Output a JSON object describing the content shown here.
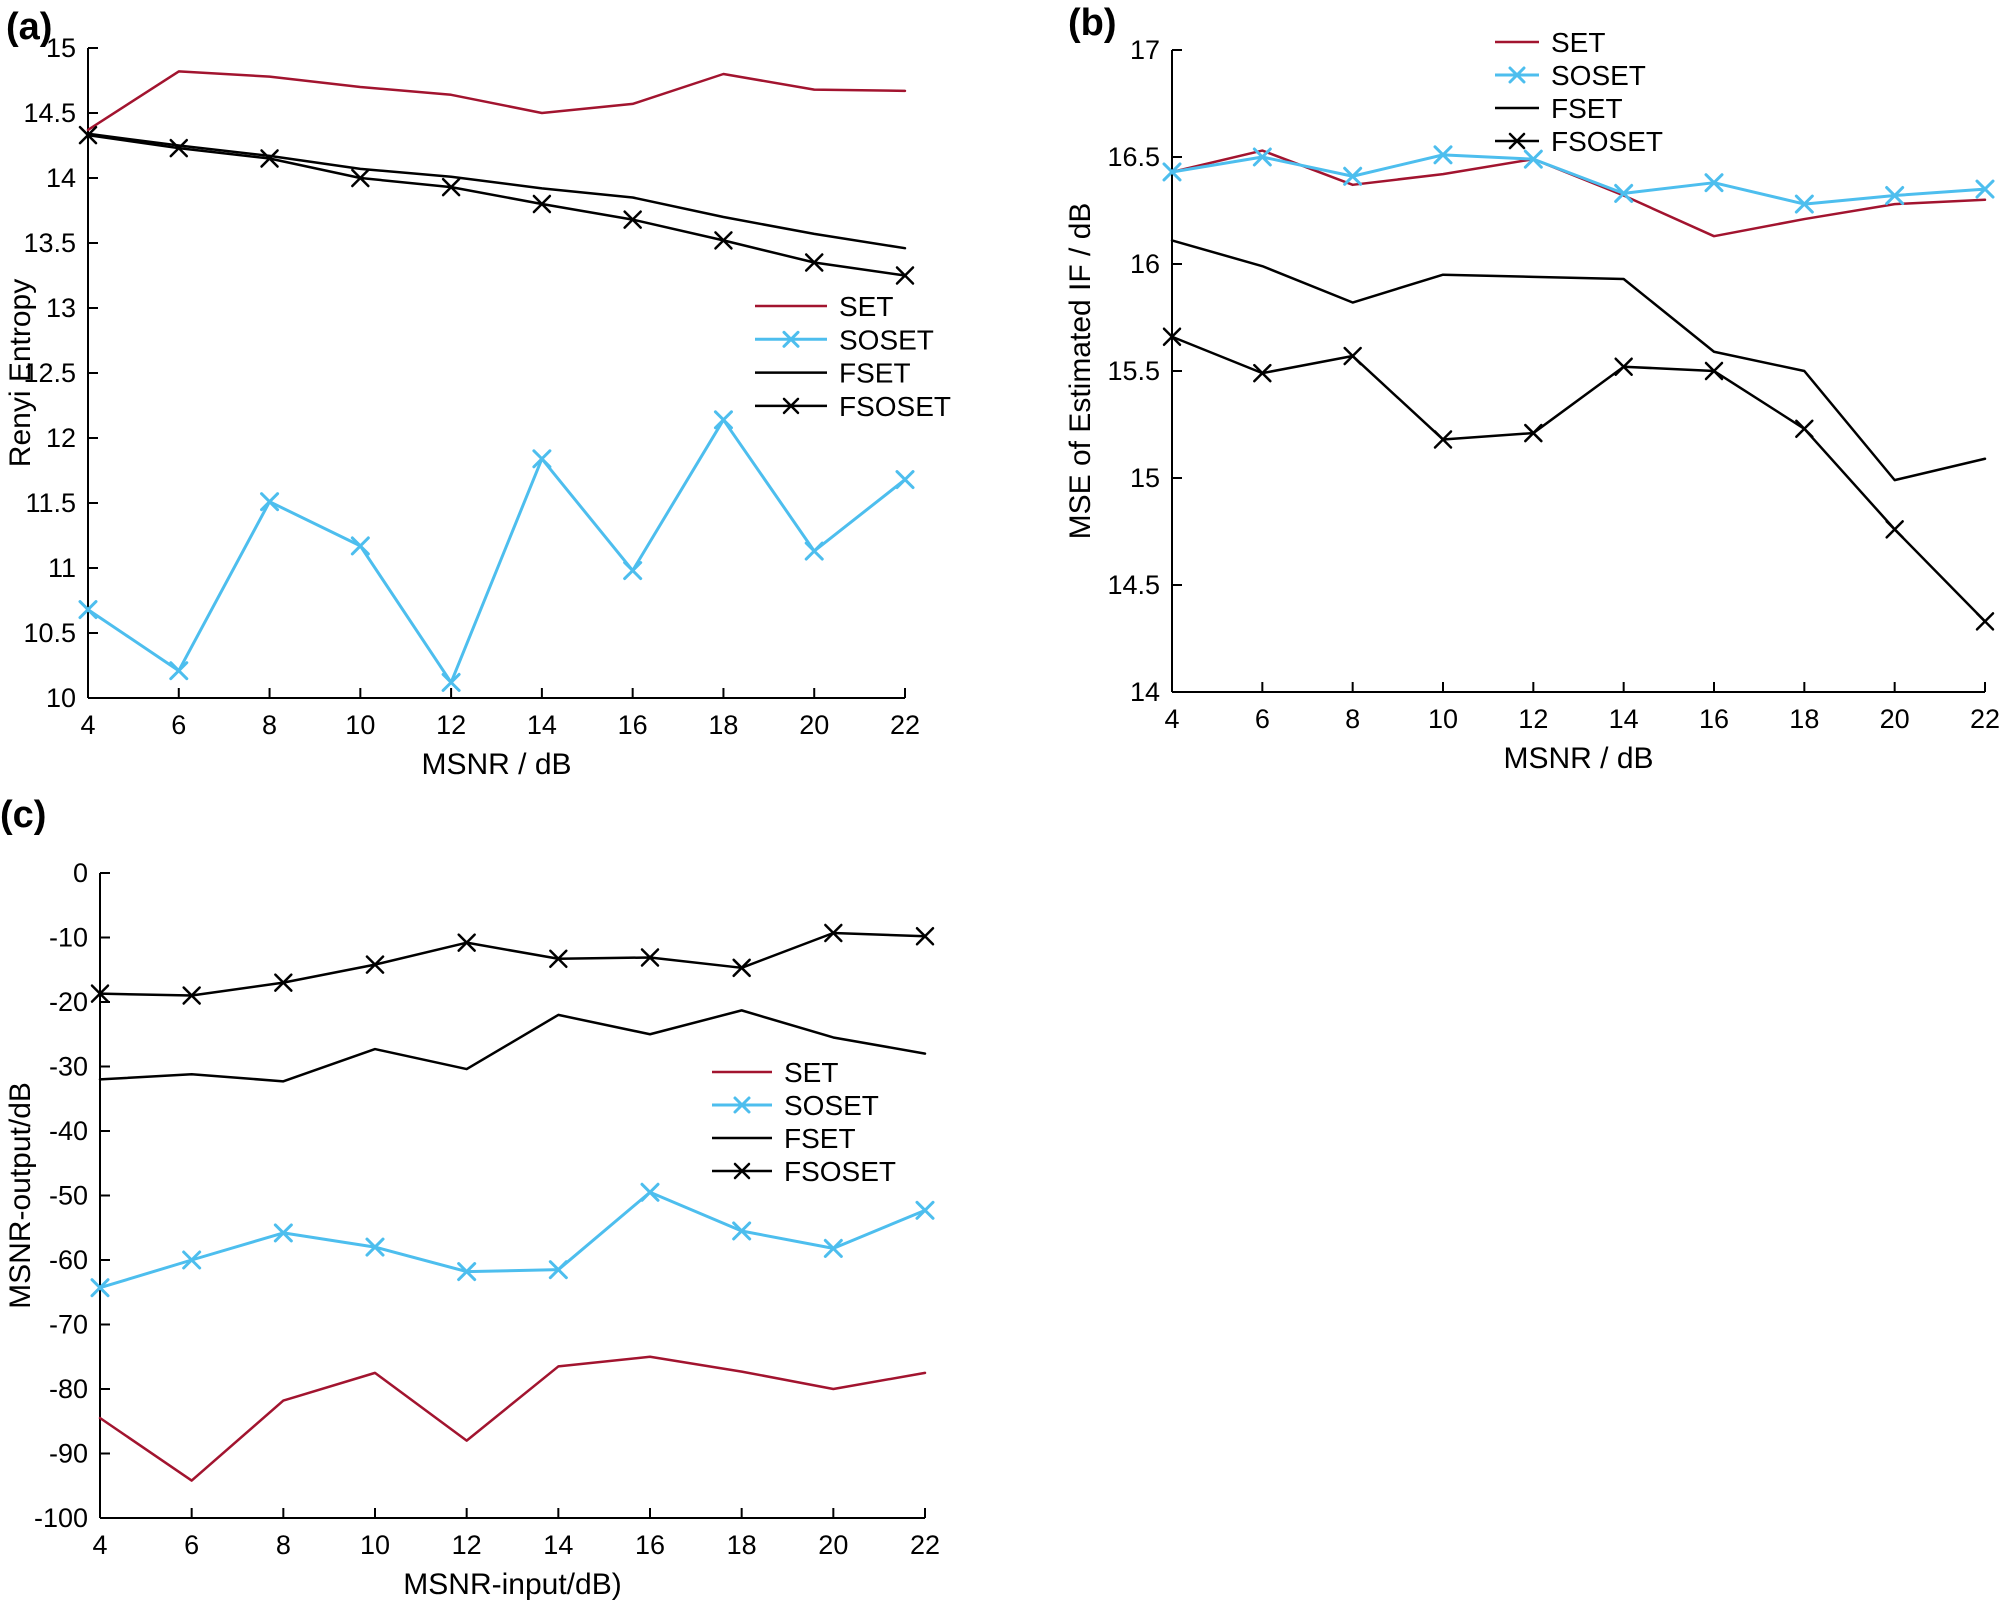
{
  "figure": {
    "background": "#ffffff",
    "accent_colors": {
      "set": "#A2142F",
      "soset": "#4DBEEE",
      "fset": "#000000",
      "fsoset": "#000000",
      "axis": "#000000"
    }
  },
  "panels": {
    "a": {
      "letter": "(a)"
    },
    "b": {
      "letter": "(b)"
    },
    "c": {
      "letter": "(c)"
    }
  },
  "chart_data": [
    {
      "id": "a",
      "type": "line",
      "title": "",
      "xlabel": "MSNR / dB",
      "ylabel": "Renyi Entropy",
      "x": [
        4,
        6,
        8,
        10,
        12,
        14,
        16,
        18,
        20,
        22
      ],
      "xlim": [
        4,
        22
      ],
      "ylim": [
        10,
        15
      ],
      "xticks": [
        "4",
        "6",
        "8",
        "10",
        "12",
        "14",
        "16",
        "18",
        "20",
        "22"
      ],
      "ytick_values": [
        10,
        10.5,
        11,
        11.5,
        12,
        12.5,
        13,
        13.5,
        14,
        14.5,
        15
      ],
      "ytick_labels": [
        "10",
        "10.5",
        "11",
        "11.5",
        "12",
        "12.5",
        "13",
        "13.5",
        "14",
        "14.5",
        "15"
      ],
      "grid": false,
      "legend_position": "inside-right-middle",
      "legend_entries": [
        "SET",
        "SOSET",
        "FSET",
        "FSOSET"
      ],
      "series": [
        {
          "name": "SET",
          "color": "#A2142F",
          "marker": "none",
          "width": 2.5,
          "values": [
            14.37,
            14.82,
            14.78,
            14.7,
            14.64,
            14.5,
            14.57,
            14.8,
            14.68,
            14.67
          ]
        },
        {
          "name": "SOSET",
          "color": "#4DBEEE",
          "marker": "x",
          "width": 3,
          "values": [
            10.68,
            10.21,
            11.51,
            11.17,
            10.12,
            11.84,
            10.98,
            12.14,
            11.13,
            11.68
          ]
        },
        {
          "name": "FSET",
          "color": "#000000",
          "marker": "none",
          "width": 2.5,
          "values": [
            14.34,
            14.25,
            14.17,
            14.07,
            14.01,
            13.92,
            13.85,
            13.7,
            13.57,
            13.46
          ]
        },
        {
          "name": "FSOSET",
          "color": "#000000",
          "marker": "x",
          "width": 2.5,
          "values": [
            14.33,
            14.23,
            14.15,
            14.0,
            13.93,
            13.8,
            13.68,
            13.52,
            13.35,
            13.25
          ]
        }
      ]
    },
    {
      "id": "b",
      "type": "line",
      "title": "",
      "xlabel": "MSNR / dB",
      "ylabel": "MSE of Estimated IF / dB",
      "x": [
        4,
        6,
        8,
        10,
        12,
        14,
        16,
        18,
        20,
        22
      ],
      "xlim": [
        4,
        22
      ],
      "ylim": [
        14,
        17
      ],
      "xticks": [
        "4",
        "6",
        "8",
        "10",
        "12",
        "14",
        "16",
        "18",
        "20",
        "22"
      ],
      "ytick_values": [
        14,
        14.5,
        15,
        15.5,
        16,
        16.5,
        17
      ],
      "ytick_labels": [
        "14",
        "14.5",
        "15",
        "15.5",
        "16",
        "16.5",
        "17"
      ],
      "grid": false,
      "legend_position": "inside-top-right",
      "legend_entries": [
        "SET",
        "SOSET",
        "FSET",
        "FSOSET"
      ],
      "series": [
        {
          "name": "SET",
          "color": "#A2142F",
          "marker": "none",
          "width": 2.5,
          "values": [
            16.43,
            16.53,
            16.37,
            16.42,
            16.49,
            16.32,
            16.13,
            16.21,
            16.28,
            16.3
          ]
        },
        {
          "name": "SOSET",
          "color": "#4DBEEE",
          "marker": "x",
          "width": 3,
          "values": [
            16.43,
            16.5,
            16.41,
            16.51,
            16.49,
            16.33,
            16.38,
            16.28,
            16.32,
            16.35
          ]
        },
        {
          "name": "FSET",
          "color": "#000000",
          "marker": "none",
          "width": 2.5,
          "values": [
            16.11,
            15.99,
            15.82,
            15.95,
            15.94,
            15.93,
            15.59,
            15.5,
            14.99,
            15.09
          ]
        },
        {
          "name": "FSOSET",
          "color": "#000000",
          "marker": "x",
          "width": 2.5,
          "values": [
            15.66,
            15.49,
            15.57,
            15.18,
            15.21,
            15.52,
            15.5,
            15.23,
            14.76,
            14.33
          ]
        }
      ]
    },
    {
      "id": "c",
      "type": "line",
      "title": "",
      "xlabel": "MSNR-input/dB)",
      "ylabel": "MSNR-output/dB",
      "x": [
        4,
        6,
        8,
        10,
        12,
        14,
        16,
        18,
        20,
        22
      ],
      "xlim": [
        4,
        22
      ],
      "ylim": [
        -100,
        0
      ],
      "xticks": [
        "4",
        "6",
        "8",
        "10",
        "12",
        "14",
        "16",
        "18",
        "20",
        "22"
      ],
      "ytick_values": [
        -100,
        -90,
        -80,
        -70,
        -60,
        -50,
        -40,
        -30,
        -20,
        -10,
        0
      ],
      "ytick_labels": [
        "-100",
        "-90",
        "-80",
        "-70",
        "-60",
        "-50",
        "-40",
        "-30",
        "-20",
        "-10",
        "0"
      ],
      "grid": false,
      "legend_position": "inside-right-middle",
      "legend_entries": [
        "SET",
        "SOSET",
        "FSET",
        "FSOSET"
      ],
      "series": [
        {
          "name": "SET",
          "color": "#A2142F",
          "marker": "none",
          "width": 2.5,
          "values": [
            -84.5,
            -94.2,
            -81.8,
            -77.5,
            -88.0,
            -76.5,
            -75.0,
            -77.3,
            -80.0,
            -77.5
          ]
        },
        {
          "name": "SOSET",
          "color": "#4DBEEE",
          "marker": "x",
          "width": 3,
          "values": [
            -64.3,
            -60.0,
            -55.8,
            -58.0,
            -61.8,
            -61.5,
            -49.5,
            -55.5,
            -58.2,
            -52.3
          ]
        },
        {
          "name": "FSET",
          "color": "#000000",
          "marker": "none",
          "width": 2.5,
          "values": [
            -32.0,
            -31.2,
            -32.3,
            -27.3,
            -30.4,
            -22.0,
            -25.0,
            -21.3,
            -25.5,
            -28.0
          ]
        },
        {
          "name": "FSOSET",
          "color": "#000000",
          "marker": "x",
          "width": 2.5,
          "values": [
            -18.7,
            -19.0,
            -17.0,
            -14.2,
            -10.8,
            -13.3,
            -13.1,
            -14.7,
            -9.3,
            -9.8
          ]
        }
      ]
    }
  ]
}
